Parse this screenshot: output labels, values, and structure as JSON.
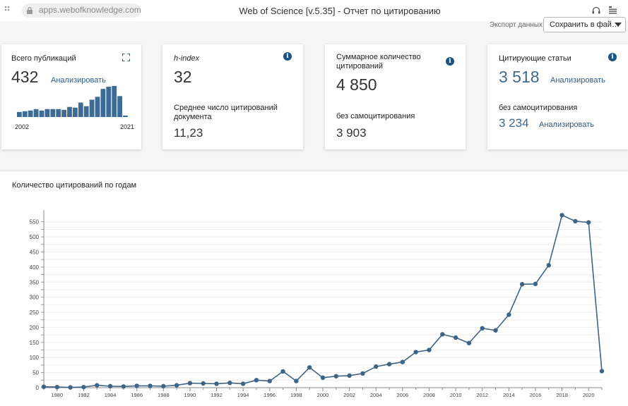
{
  "browser": {
    "url": "apps.webofknowledge.com",
    "title": "Web of Science [v.5.35] - Отчет по цитированию"
  },
  "export": {
    "label": "Экспорт данных:",
    "selected": "Сохранить в фай…"
  },
  "cards": {
    "publications": {
      "label": "Всего публикаций",
      "value": "432",
      "analyze": "Анализировать",
      "year_start": "2002",
      "year_end": "2021",
      "bar_values": [
        7,
        8,
        9,
        11,
        9,
        11,
        11,
        11,
        10,
        14,
        13,
        20,
        15,
        24,
        28,
        39,
        42,
        43,
        29,
        2
      ]
    },
    "hindex": {
      "label": "h-index",
      "value": "32",
      "avg_label": "Среднее число цитирований документа",
      "avg_value": "11,23"
    },
    "citations": {
      "label": "Суммарное количество цитирований",
      "value": "4 850",
      "self_label": "без самоцитирования",
      "self_value": "3 903"
    },
    "citing": {
      "label": "Цитирующие статьи",
      "value": "3 518",
      "analyze": "Анализировать",
      "self_label": "без самоцитирования",
      "self_value": "3 234",
      "self_analyze": "Анализировать"
    }
  },
  "colors": {
    "accent": "#3d6a8f",
    "line": "#3e6486",
    "bars": "#3e6b94",
    "info": "#1a5384"
  },
  "chart_data": {
    "type": "line",
    "title": "Количество цитирований по годам",
    "x": [
      1979,
      1980,
      1981,
      1982,
      1983,
      1984,
      1985,
      1986,
      1987,
      1988,
      1989,
      1990,
      1991,
      1992,
      1993,
      1994,
      1995,
      1996,
      1997,
      1998,
      1999,
      2000,
      2001,
      2002,
      2003,
      2004,
      2005,
      2006,
      2007,
      2008,
      2009,
      2010,
      2011,
      2012,
      2013,
      2014,
      2015,
      2016,
      2017,
      2018,
      2019,
      2020,
      2021
    ],
    "y": [
      3,
      2,
      1,
      2,
      8,
      5,
      4,
      6,
      6,
      5,
      8,
      15,
      14,
      13,
      16,
      13,
      25,
      22,
      54,
      22,
      67,
      33,
      38,
      40,
      47,
      70,
      78,
      85,
      118,
      125,
      177,
      166,
      148,
      197,
      190,
      242,
      343,
      344,
      406,
      572,
      552,
      548,
      55
    ],
    "xlim": [
      1979,
      2021
    ],
    "ylim": [
      0,
      575
    ],
    "y_ticks": [
      0,
      25,
      50,
      75,
      100,
      125,
      150,
      175,
      200,
      225,
      250,
      275,
      300,
      325,
      350,
      375,
      400,
      425,
      450,
      475,
      500,
      525,
      550
    ],
    "y_tick_labels": [
      "0",
      "",
      "50",
      "",
      "100",
      "",
      "150",
      "",
      "200",
      "",
      "250",
      "",
      "300",
      "",
      "350",
      "",
      "400",
      "",
      "450",
      "",
      "500",
      "",
      "550"
    ],
    "x_ticks": [
      1980,
      1982,
      1984,
      1986,
      1988,
      1990,
      1992,
      1994,
      1996,
      1998,
      2000,
      2002,
      2004,
      2006,
      2008,
      2010,
      2012,
      2014,
      2016,
      2018,
      2020
    ],
    "grid": "horizontal"
  }
}
